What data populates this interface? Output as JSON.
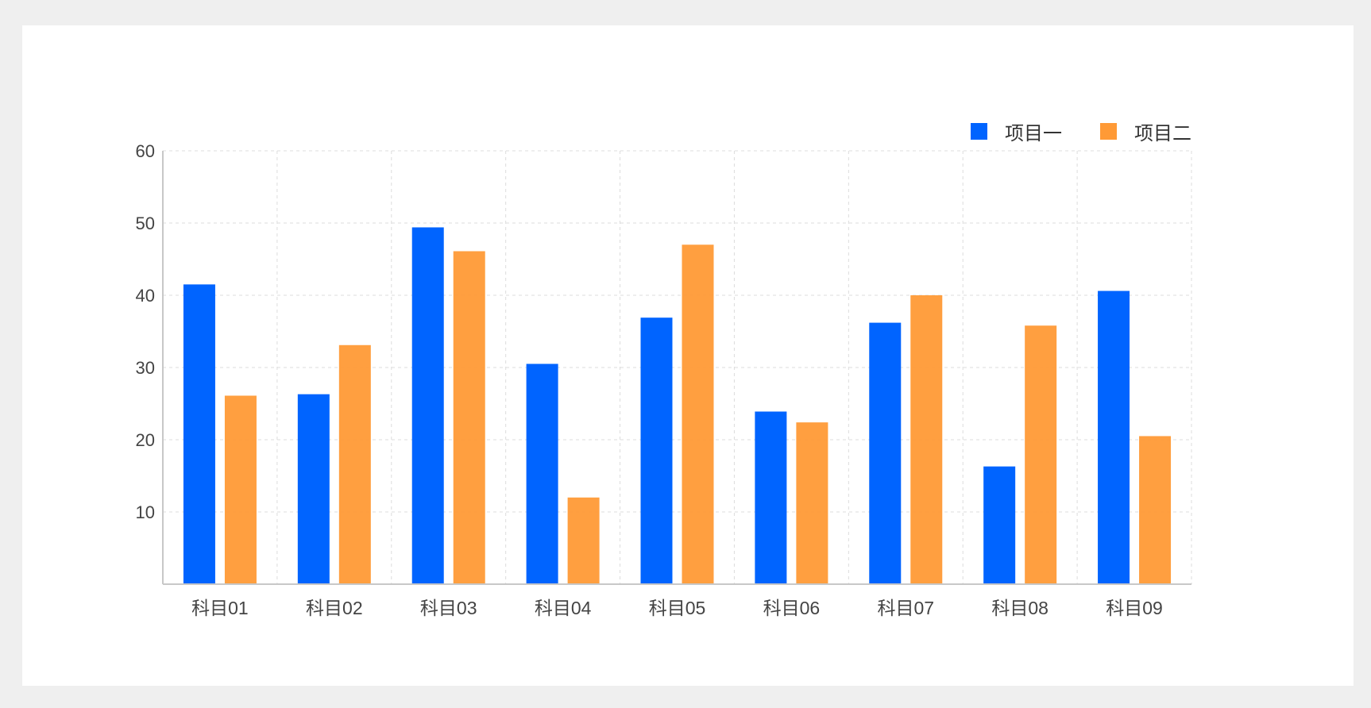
{
  "colors": {
    "background": "#efefef",
    "card": "#ffffff",
    "series1": "#0064ff",
    "series2": "#ff9a36",
    "grid": "#dcdcdc",
    "axis": "#c8c8c8"
  },
  "chart_data": {
    "type": "bar",
    "title": "",
    "xlabel": "",
    "ylabel": "",
    "ylim": [
      0,
      60
    ],
    "yticks": [
      10,
      20,
      30,
      40,
      50,
      60
    ],
    "grid": true,
    "legend_position": "top-right",
    "categories": [
      "科目01",
      "科目02",
      "科目03",
      "科目04",
      "科目05",
      "科目06",
      "科目07",
      "科目08",
      "科目09"
    ],
    "series": [
      {
        "name": "项目一",
        "values": [
          41.5,
          26.3,
          49.4,
          30.5,
          36.9,
          23.9,
          36.2,
          16.3,
          40.6
        ]
      },
      {
        "name": "项目二",
        "values": [
          26.1,
          33.1,
          46.1,
          12.0,
          47.0,
          22.4,
          40.0,
          35.8,
          20.5
        ]
      }
    ]
  }
}
